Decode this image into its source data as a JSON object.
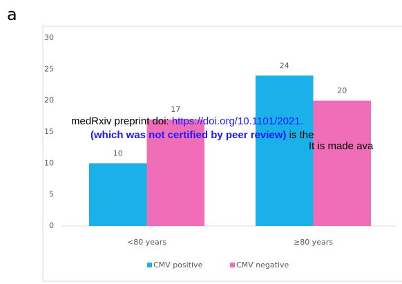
{
  "panel_label": "a",
  "chart_data": {
    "type": "bar",
    "categories": [
      "<80 years",
      "≥80 years"
    ],
    "series": [
      {
        "name": "CMV positive",
        "color": "#1ab0ea",
        "values": [
          10,
          24
        ]
      },
      {
        "name": "CMV negative",
        "color": "#f06eb8",
        "values": [
          17,
          20
        ]
      }
    ],
    "ylim": [
      0,
      30
    ],
    "yticks": [
      0,
      5,
      10,
      15,
      20,
      25,
      30
    ],
    "grid": false,
    "legend": "bottom"
  },
  "watermark": {
    "line1_prefix": "medRxiv preprint doi: ",
    "line1_link": "https://doi.org/10.1101/2021.",
    "line2_bold": "(which was not certified by peer review)",
    "line2_rest": " is the",
    "line3": "It is made ava"
  }
}
